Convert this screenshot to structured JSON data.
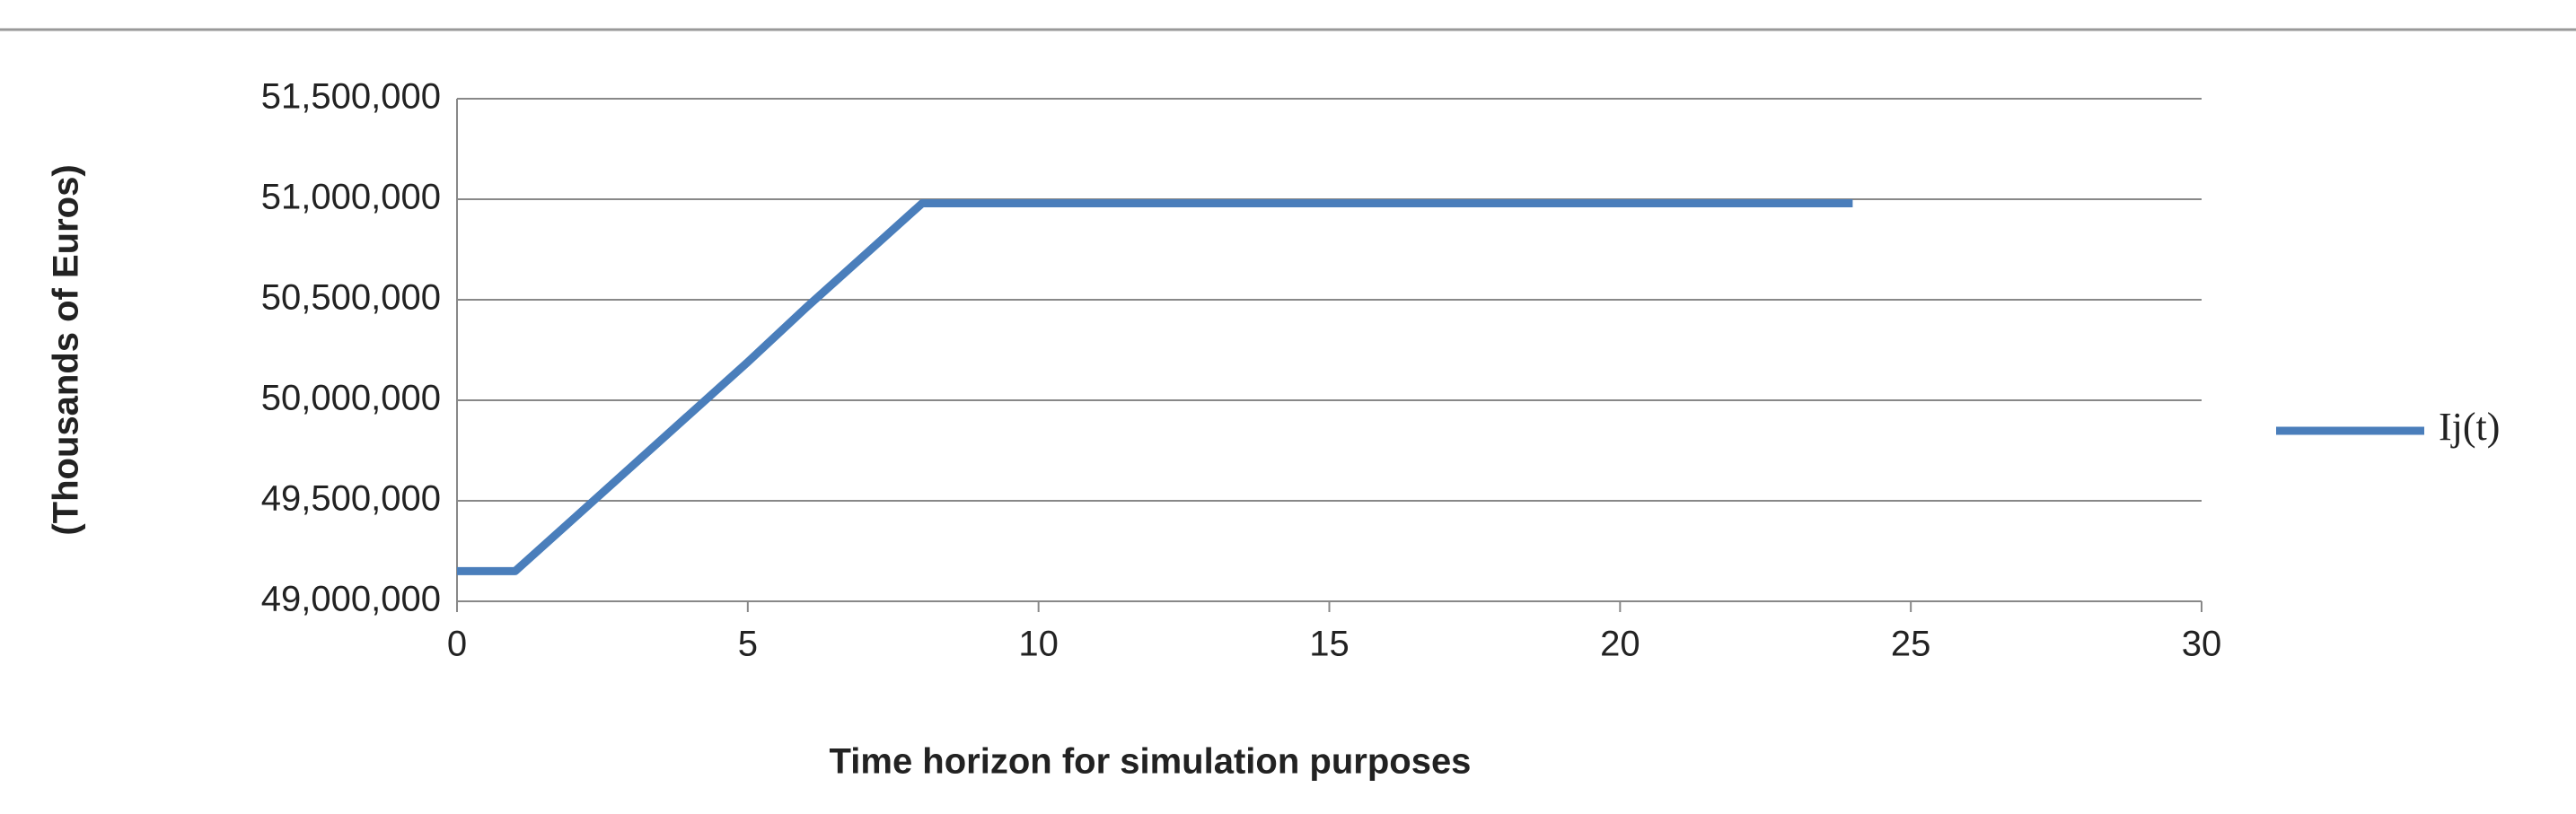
{
  "chart_data": {
    "type": "line",
    "xlabel": "Time horizon for simulation purposes",
    "ylabel": "(Thousands of Euros)",
    "x": [
      0,
      1,
      2,
      3,
      4,
      5,
      6,
      7,
      8,
      9,
      10,
      11,
      12,
      13,
      14,
      15,
      16,
      17,
      18,
      19,
      20,
      21,
      22,
      23,
      24
    ],
    "series": [
      {
        "name": "Ij(t)",
        "color": "#4a7ebb",
        "values": [
          49150000,
          49150000,
          49410000,
          49670000,
          49930000,
          50190000,
          50460000,
          50720000,
          50980000,
          50980000,
          50980000,
          50980000,
          50980000,
          50980000,
          50980000,
          50980000,
          50980000,
          50980000,
          50980000,
          50980000,
          50980000,
          50980000,
          50980000,
          50980000,
          50980000
        ]
      }
    ],
    "xlim": [
      0,
      30
    ],
    "xticks": [
      0,
      5,
      10,
      15,
      20,
      25,
      30
    ],
    "ylim": [
      49000000,
      51500000
    ],
    "yticks": [
      {
        "value": 49000000,
        "label": "49,000,000"
      },
      {
        "value": 49500000,
        "label": "49,500,000"
      },
      {
        "value": 50000000,
        "label": "50,000,000"
      },
      {
        "value": 50500000,
        "label": "50,500,000"
      },
      {
        "value": 51000000,
        "label": "51,000,000"
      },
      {
        "value": 51500000,
        "label": "51,500,000"
      }
    ],
    "grid": true,
    "legend": "right"
  }
}
